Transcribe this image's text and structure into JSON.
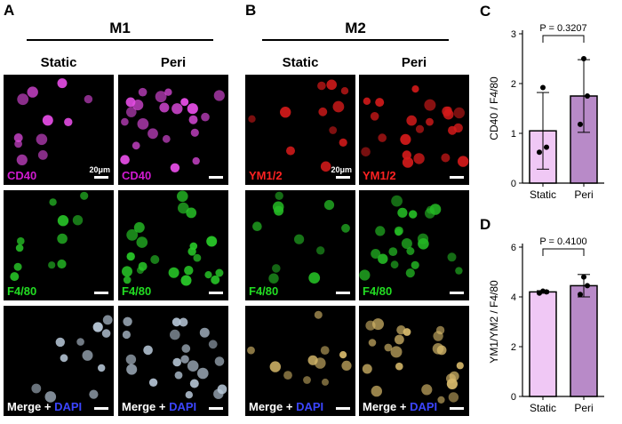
{
  "panels": {
    "A": {
      "letter": "A",
      "title": "M1",
      "columns": [
        "Static",
        "Peri"
      ],
      "rows": [
        {
          "label": "CD40",
          "color": "#d01ad0",
          "cell": "#e64de6"
        },
        {
          "label": "F4/80",
          "color": "#22dd22",
          "cell": "#28c828"
        },
        {
          "label_main": "Merge + ",
          "label_accent": "DAPI",
          "accent_color": "#3b45ff",
          "cell": "#b8c8d8"
        }
      ]
    },
    "B": {
      "letter": "B",
      "title": "M2",
      "columns": [
        "Static",
        "Peri"
      ],
      "rows": [
        {
          "label": "YM1/2",
          "color": "#ff2222",
          "cell": "#d41a1a"
        },
        {
          "label": "F4/80",
          "color": "#22dd22",
          "cell": "#24b824"
        },
        {
          "label_main": "Merge + ",
          "label_accent": "DAPI",
          "accent_color": "#3b45ff",
          "cell": "#d6b86a"
        }
      ]
    },
    "scale_label": "20μm"
  },
  "chart_data": [
    {
      "panel": "C",
      "type": "bar",
      "categories": [
        "Static",
        "Peri"
      ],
      "values": [
        1.05,
        1.75
      ],
      "error": [
        0.77,
        0.73
      ],
      "points": [
        [
          0.62,
          0.72,
          1.92
        ],
        [
          1.18,
          1.75,
          2.5
        ]
      ],
      "ylabel": "CD40 / F4/80",
      "ylim": [
        0,
        3
      ],
      "yticks": [
        0,
        1,
        2,
        3
      ],
      "annotation": "P = 0.3207",
      "colors": [
        "#f0c8f5",
        "#b88ac8"
      ]
    },
    {
      "panel": "D",
      "type": "bar",
      "categories": [
        "Static",
        "Peri"
      ],
      "values": [
        4.2,
        4.45
      ],
      "error": [
        0.05,
        0.45
      ],
      "points": [
        [
          4.15,
          4.2,
          4.23
        ],
        [
          4.1,
          4.45,
          4.8
        ]
      ],
      "ylabel": "YM1/YM2 / F4/80",
      "ylim": [
        0,
        6
      ],
      "yticks": [
        0,
        2,
        4,
        6
      ],
      "annotation": "P = 0.4100",
      "colors": [
        "#f0c8f5",
        "#b88ac8"
      ]
    }
  ]
}
